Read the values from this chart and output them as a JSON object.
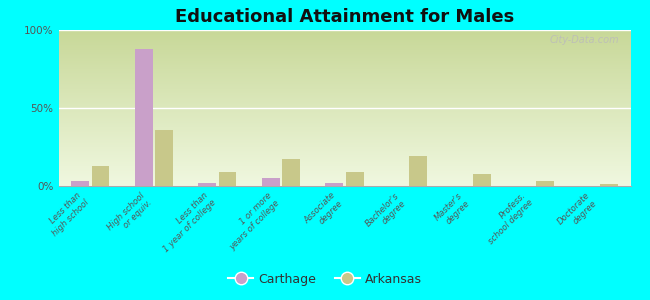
{
  "title": "Educational Attainment for Males",
  "categories": [
    "Less than\nhigh school",
    "High school\nor equiv.",
    "Less than\n1 year of college",
    "1 or more\nyears of college",
    "Associate\ndegree",
    "Bachelor's\ndegree",
    "Master's\ndegree",
    "Profess.\nschool degree",
    "Doctorate\ndegree"
  ],
  "carthage_values": [
    3.0,
    88.0,
    2.0,
    5.0,
    2.0,
    0.0,
    0.0,
    0.0,
    0.0
  ],
  "arkansas_values": [
    13.0,
    36.0,
    9.0,
    17.0,
    9.0,
    19.0,
    8.0,
    3.0,
    1.5
  ],
  "carthage_color": "#c9a0c9",
  "arkansas_color": "#c8c88a",
  "bg_outer": "#00ffff",
  "bg_top_color": "#c8d898",
  "bg_bottom_color": "#f0f8e0",
  "ylim": [
    0,
    100
  ],
  "yticks": [
    0,
    50,
    100
  ],
  "ytick_labels": [
    "0%",
    "50%",
    "100%"
  ],
  "title_fontsize": 13,
  "watermark": "City-Data.com",
  "bar_width": 0.28
}
